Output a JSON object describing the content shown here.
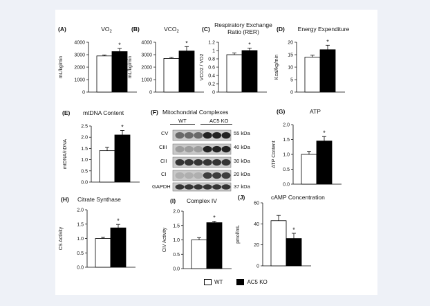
{
  "legend": {
    "wt_label": "WT",
    "ko_label": "AC5 KO",
    "wt_color": "#ffffff",
    "ko_color": "#000000"
  },
  "western": {
    "letter": "(F)",
    "title": "Mitochondrial Complexes",
    "groups": [
      "WT",
      "AC5 KO"
    ],
    "bands": [
      {
        "label": "CV",
        "mw": "55 kDa"
      },
      {
        "label": "CIII",
        "mw": "40 kDa"
      },
      {
        "label": "CII",
        "mw": "30 kDa"
      },
      {
        "label": "CI",
        "mw": "20 kDa"
      },
      {
        "label": "GAPDH",
        "mw": "37 kDa"
      }
    ]
  },
  "chart_data": [
    {
      "id": "A",
      "letter": "(A)",
      "title": "VO",
      "title_sub": "2",
      "type": "bar",
      "ylabel": "mL/kg/min",
      "categories": [
        "WT",
        "AC5 KO"
      ],
      "values": [
        2900,
        3250
      ],
      "errors": [
        80,
        250
      ],
      "ylim": [
        0,
        4000
      ],
      "yticks": [
        "0",
        "1000",
        "2000",
        "3000",
        "4000"
      ],
      "significance": "*"
    },
    {
      "id": "B",
      "letter": "(B)",
      "title": "VCO",
      "title_sub": "2",
      "type": "bar",
      "ylabel": "mL/kg/min",
      "categories": [
        "WT",
        "AC5 KO"
      ],
      "values": [
        2700,
        3300
      ],
      "errors": [
        80,
        350
      ],
      "ylim": [
        0,
        4000
      ],
      "yticks": [
        "0",
        "1000",
        "2000",
        "3000",
        "4000"
      ],
      "significance": "*"
    },
    {
      "id": "C",
      "letter": "(C)",
      "title": "Respiratory Exchange",
      "title2": "Ratio (RER)",
      "type": "bar",
      "ylabel": "VCO2 / VO2",
      "categories": [
        "WT",
        "AC5 KO"
      ],
      "values": [
        0.9,
        1.0
      ],
      "errors": [
        0.04,
        0.06
      ],
      "ylim": [
        0,
        1.2
      ],
      "yticks": [
        "0",
        "0.2",
        "0.4",
        "0.6",
        "0.8",
        "1",
        "1.2"
      ],
      "significance": "*"
    },
    {
      "id": "D",
      "letter": "(D)",
      "title": "Energy Expenditure",
      "type": "bar",
      "ylabel": "Kcal/kg/min",
      "categories": [
        "WT",
        "AC5 KO"
      ],
      "values": [
        14.0,
        17.0
      ],
      "errors": [
        0.8,
        1.8
      ],
      "ylim": [
        0,
        20
      ],
      "yticks": [
        "0",
        "5",
        "10",
        "15",
        "20"
      ],
      "significance": "*"
    },
    {
      "id": "E",
      "letter": "(E)",
      "title": "mtDNA Content",
      "type": "bar",
      "ylabel": "mtDNA/nDNA",
      "categories": [
        "WT",
        "AC5 KO"
      ],
      "values": [
        1.4,
        2.1
      ],
      "errors": [
        0.15,
        0.2
      ],
      "ylim": [
        0,
        2.5
      ],
      "yticks": [
        "0.0",
        "0.5",
        "1.0",
        "1.5",
        "2.0",
        "2.5"
      ],
      "significance": "*"
    },
    {
      "id": "G",
      "letter": "(G)",
      "title": "ATP",
      "type": "bar",
      "ylabel": "ATP Content",
      "categories": [
        "WT",
        "AC5 KO"
      ],
      "values": [
        1.0,
        1.45
      ],
      "errors": [
        0.1,
        0.15
      ],
      "ylim": [
        0,
        2.0
      ],
      "yticks": [
        "0.0",
        "0.5",
        "1.0",
        "1.5",
        "2.0"
      ],
      "significance": "*"
    },
    {
      "id": "H",
      "letter": "(H)",
      "title": "Citrate Synthase",
      "type": "bar",
      "ylabel": "CS Activity",
      "categories": [
        "WT",
        "AC5 KO"
      ],
      "values": [
        1.0,
        1.37
      ],
      "errors": [
        0.05,
        0.12
      ],
      "ylim": [
        0,
        2.0
      ],
      "yticks": [
        "0.0",
        "0.5",
        "1.0",
        "1.5",
        "2.0"
      ],
      "significance": "*"
    },
    {
      "id": "I",
      "letter": "(I)",
      "title": "Complex IV",
      "type": "bar",
      "ylabel": "CIV Activity",
      "categories": [
        "WT",
        "AC5 KO"
      ],
      "values": [
        1.0,
        1.6
      ],
      "errors": [
        0.08,
        0.05
      ],
      "ylim": [
        0,
        2.0
      ],
      "yticks": [
        "0.0",
        "0.5",
        "1.0",
        "1.5",
        "2.0"
      ],
      "significance": "*"
    },
    {
      "id": "J",
      "letter": "(J)",
      "title": "cAMP Concentration",
      "type": "bar",
      "ylabel": "pmol/mL",
      "categories": [
        "WT",
        "AC5 KO"
      ],
      "values": [
        43,
        26
      ],
      "errors": [
        5,
        5
      ],
      "ylim": [
        0,
        60
      ],
      "yticks": [
        "0",
        "20",
        "40",
        "60"
      ],
      "significance": "*"
    }
  ]
}
